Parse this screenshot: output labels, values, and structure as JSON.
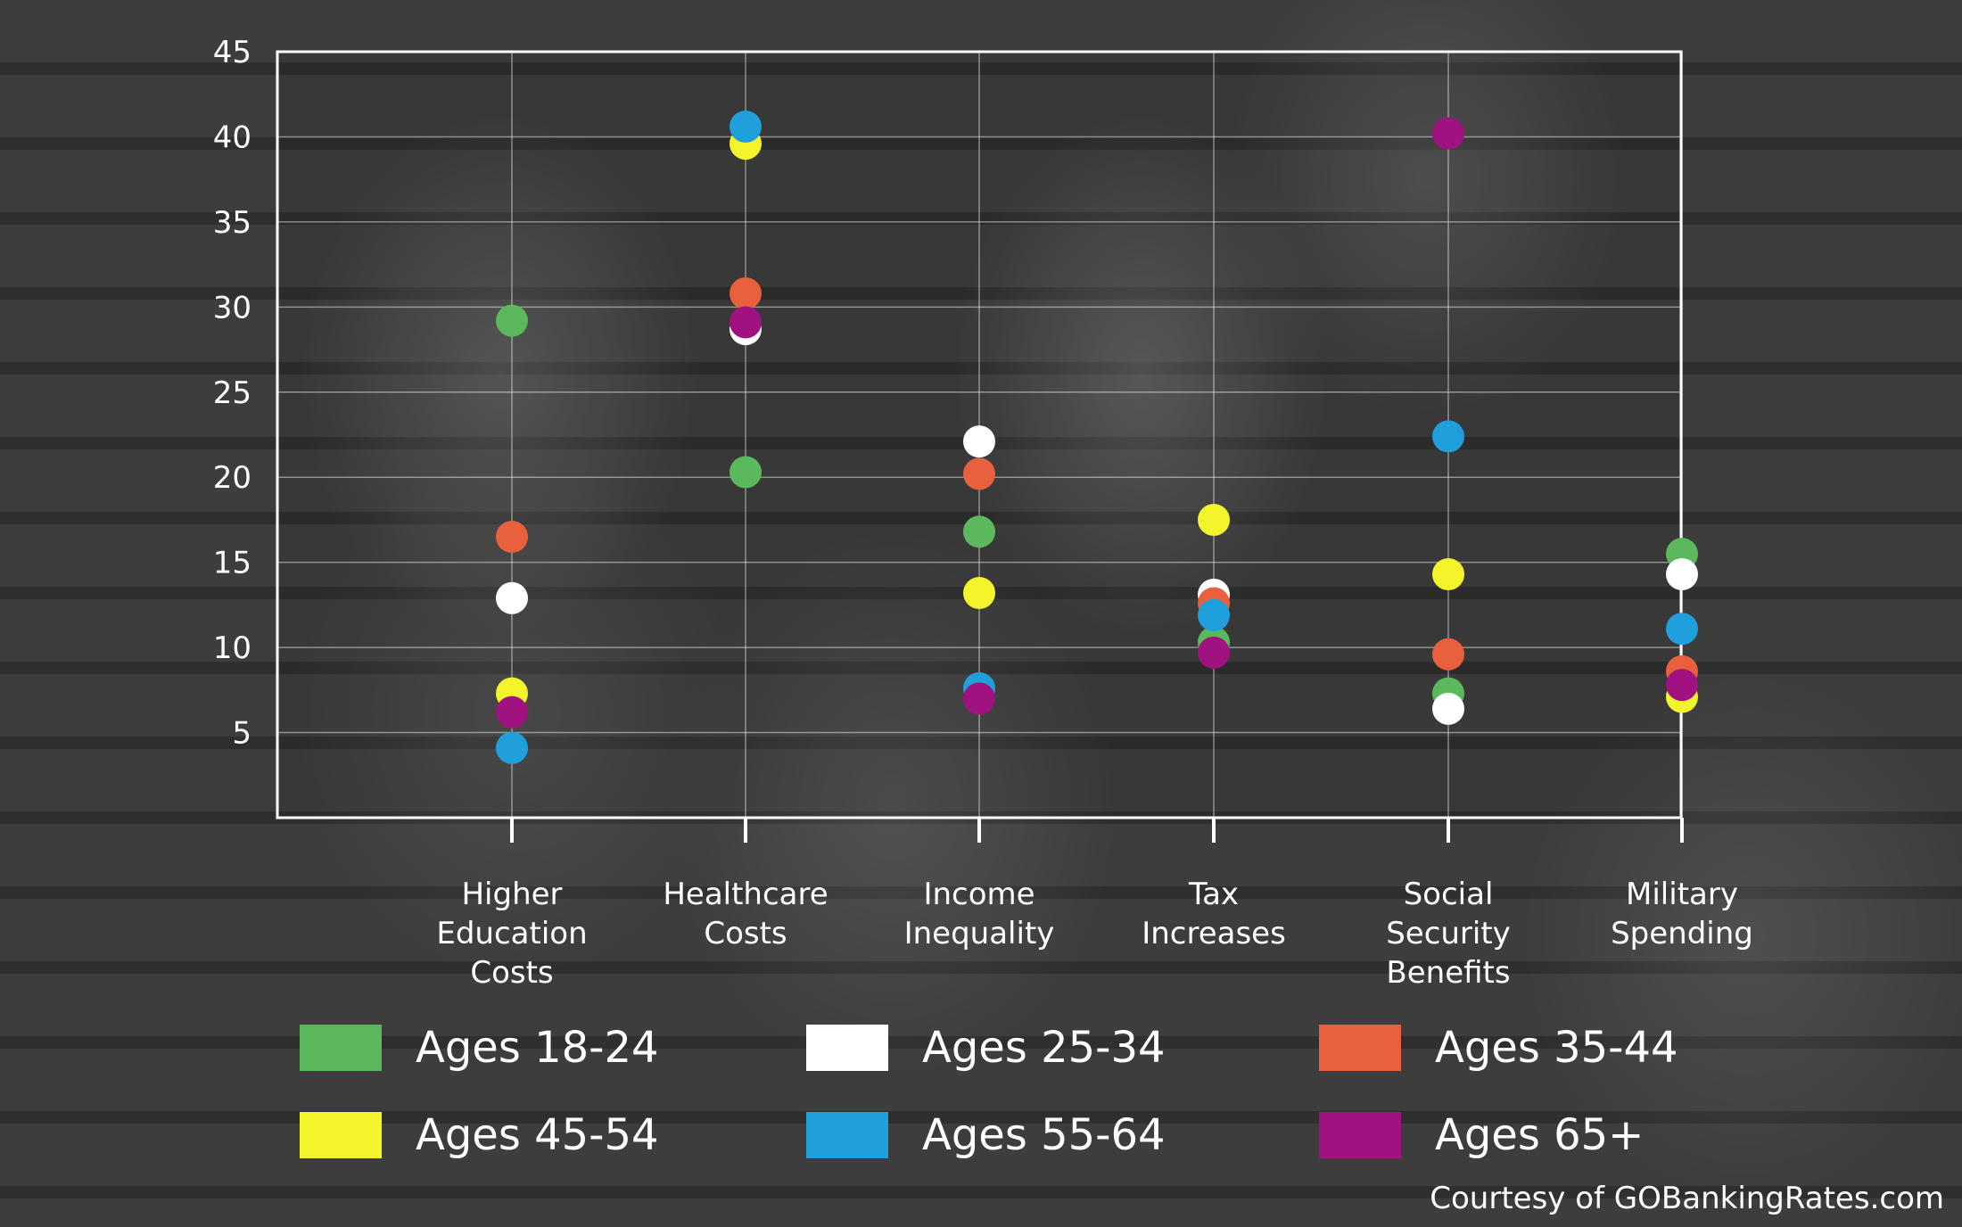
{
  "chart_data": {
    "type": "scatter",
    "title": "",
    "xlabel": "",
    "ylabel": "",
    "ylim": [
      0,
      45
    ],
    "yticks": [
      5,
      10,
      15,
      20,
      25,
      30,
      35,
      40,
      45
    ],
    "grid": true,
    "legend_position": "bottom",
    "categories": [
      [
        "Higher",
        "Education",
        "Costs"
      ],
      [
        "Healthcare",
        "Costs"
      ],
      [
        "Income",
        "Inequality"
      ],
      [
        "Tax",
        "Increases"
      ],
      [
        "Social",
        "Security",
        "Benefits"
      ],
      [
        "Military",
        "Spending"
      ]
    ],
    "series": [
      {
        "name": "Ages 18-24",
        "color": "#5cb85c",
        "values": [
          29.2,
          20.3,
          16.8,
          10.3,
          7.3,
          15.5
        ]
      },
      {
        "name": "Ages 25-34",
        "color": "#ffffff",
        "values": [
          12.9,
          28.7,
          22.1,
          13.1,
          6.4,
          14.3
        ]
      },
      {
        "name": "Ages 35-44",
        "color": "#e8613c",
        "values": [
          16.5,
          30.8,
          20.2,
          12.6,
          9.6,
          8.6
        ]
      },
      {
        "name": "Ages 45-54",
        "color": "#f4f42c",
        "values": [
          7.3,
          39.6,
          13.2,
          17.5,
          14.3,
          7.1
        ]
      },
      {
        "name": "Ages 55-64",
        "color": "#1f9fdc",
        "values": [
          4.1,
          40.6,
          7.6,
          11.9,
          22.4,
          11.1
        ]
      },
      {
        "name": "Ages 65+",
        "color": "#a0127f",
        "values": [
          6.2,
          29.1,
          7.0,
          9.7,
          40.2,
          7.8
        ]
      }
    ]
  },
  "credit": "Courtesy of GOBankingRates.com"
}
